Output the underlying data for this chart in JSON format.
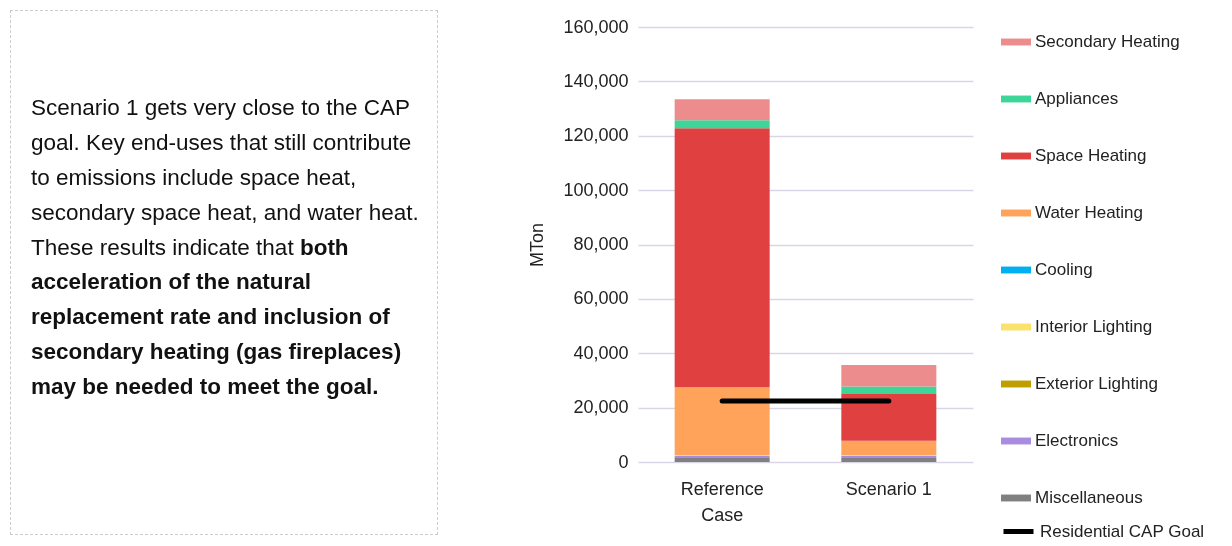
{
  "chart_data": {
    "type": "bar",
    "stacked": true,
    "categories": [
      "Reference Case",
      "Scenario 1"
    ],
    "ylabel": "MTon",
    "ylim": [
      0,
      160000
    ],
    "yticks": [
      0,
      {
        "value": 20000,
        "label": "20,000"
      },
      {
        "value": 40000,
        "label": "40,000"
      },
      {
        "value": 60000,
        "label": "60,000"
      },
      {
        "value": 80000,
        "label": "80,000"
      },
      {
        "value": 100000,
        "label": "100,000"
      },
      {
        "value": 120000,
        "label": "120,000"
      },
      {
        "value": 140000,
        "label": "140,000"
      },
      {
        "value": 160000,
        "label": "160,000"
      }
    ],
    "grid": "y",
    "legend": "right",
    "annotations": [
      "Scenario 1 gets very close to the CAP goal. Key end-uses that still contribute to emissions include space heat, secondary space heat, and water heat. These results indicate that",
      "both acceleration of the natural replacement rate and inclusion of secondary heating (gas fireplaces) may be needed to meet the goal."
    ],
    "series": [
      {
        "name": "Miscellaneous",
        "color": "#808080",
        "values": [
          1500,
          1500
        ]
      },
      {
        "name": "Electronics",
        "color": "#a88ce0",
        "values": [
          700,
          700
        ]
      },
      {
        "name": "Exterior Lighting",
        "color": "#bf9f00",
        "values": [
          0,
          0
        ]
      },
      {
        "name": "Interior Lighting",
        "color": "#fbe36b",
        "values": [
          300,
          300
        ]
      },
      {
        "name": "Cooling",
        "color": "#00b0f0",
        "values": [
          0,
          0
        ]
      },
      {
        "name": "Water Heating",
        "color": "#ffa35a",
        "values": [
          25000,
          5300
        ]
      },
      {
        "name": "Space Heating",
        "color": "#e04040",
        "values": [
          95300,
          17200
        ]
      },
      {
        "name": "Appliances",
        "color": "#3dd598",
        "values": [
          2900,
          2800
        ]
      },
      {
        "name": "Secondary Heating",
        "color": "#ed8c8c",
        "values": [
          7700,
          7900
        ]
      },
      {
        "name": "Residential CAP Goal",
        "type": "line",
        "color": "#000000",
        "values": [
          22400,
          22400
        ]
      }
    ]
  }
}
